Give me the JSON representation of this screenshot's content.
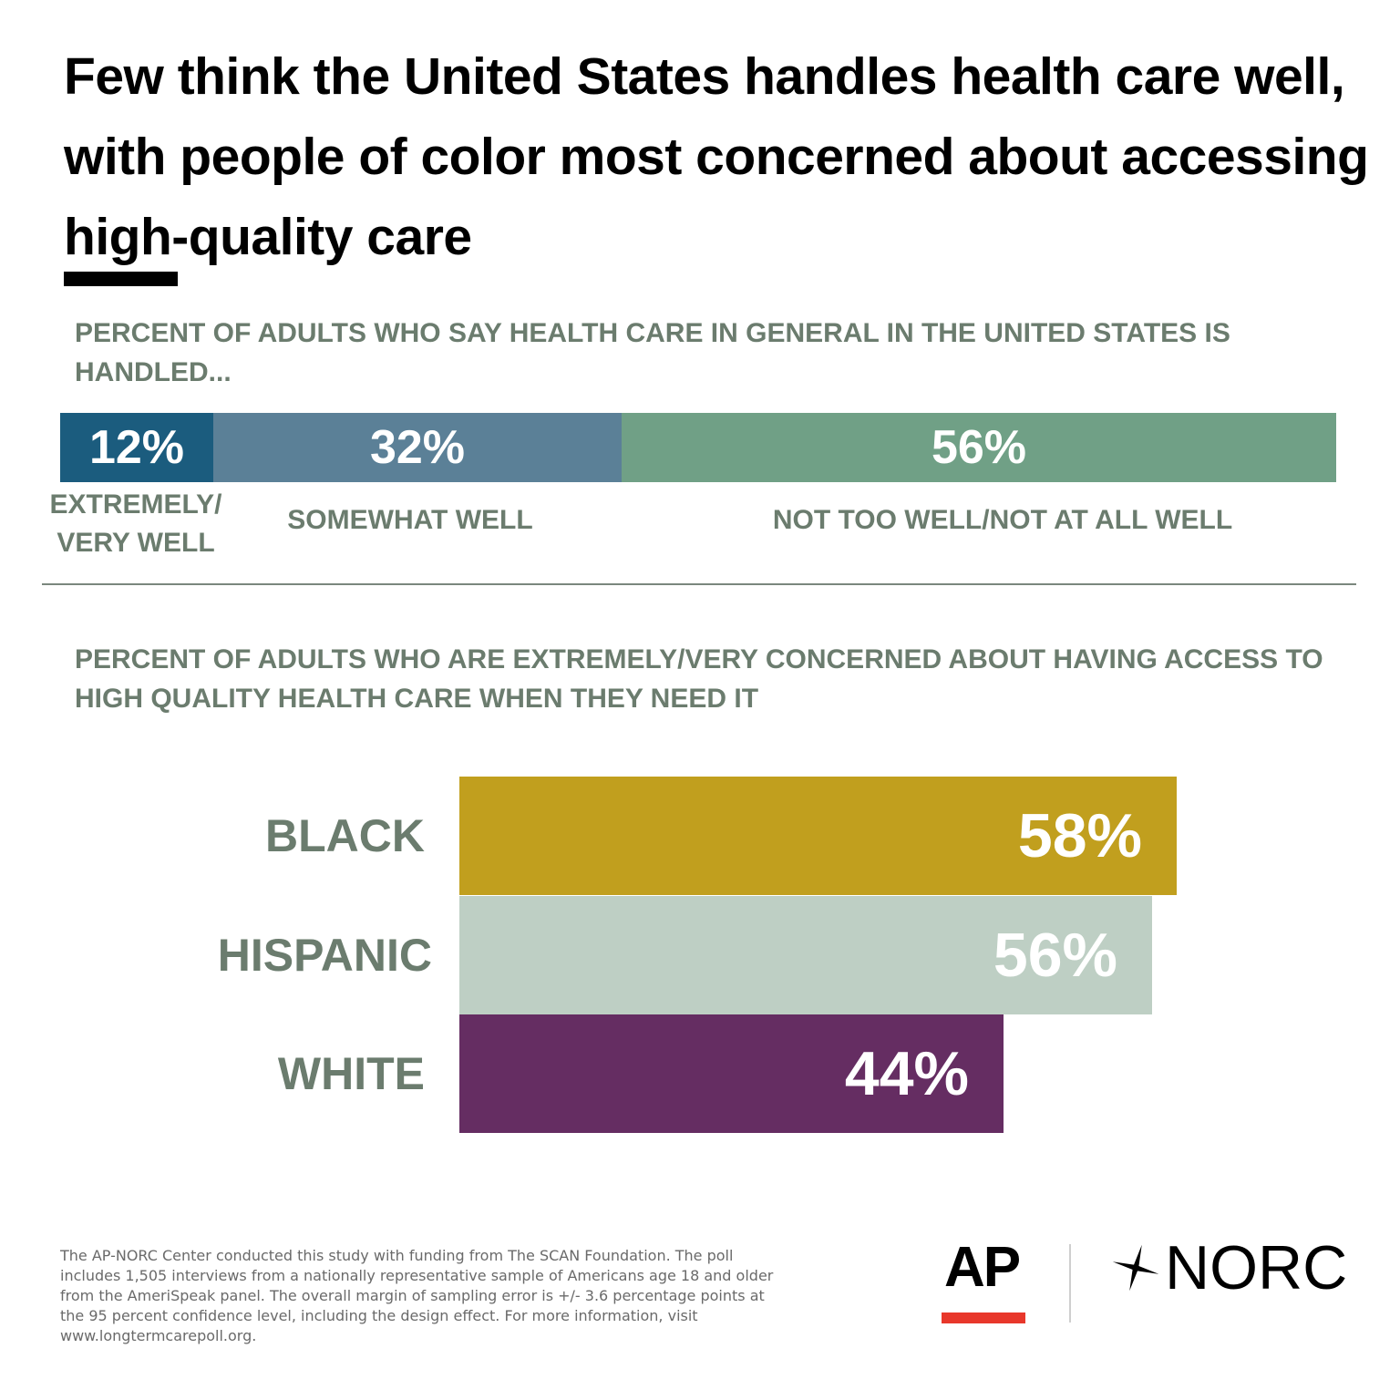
{
  "title": "Few think the United States handles health care well, with people of color most concerned about accessing high-quality care",
  "chart_data": [
    {
      "type": "bar",
      "orientation": "stacked-horizontal",
      "subtitle": "PERCENT OF ADULTS WHO SAY HEALTH CARE IN GENERAL IN THE UNITED STATES IS HANDLED...",
      "categories": [
        "EXTREMELY/ VERY WELL",
        "SOMEWHAT WELL",
        "NOT TOO WELL/NOT AT ALL WELL"
      ],
      "values": [
        12,
        32,
        56
      ],
      "value_labels": [
        "12%",
        "32%",
        "56%"
      ],
      "colors": [
        "#1b5c7e",
        "#5b8097",
        "#70a086"
      ],
      "xlim": [
        0,
        100
      ]
    },
    {
      "type": "bar",
      "orientation": "horizontal",
      "subtitle": "PERCENT OF ADULTS WHO ARE EXTREMELY/VERY CONCERNED ABOUT HAVING ACCESS TO HIGH QUALITY HEALTH CARE WHEN THEY NEED IT",
      "categories": [
        "BLACK",
        "HISPANIC",
        "WHITE"
      ],
      "values": [
        58,
        56,
        44
      ],
      "value_labels": [
        "58%",
        "56%",
        "44%"
      ],
      "colors": [
        "#c19f1e",
        "#becfc4",
        "#652d62"
      ],
      "xlim": [
        0,
        100
      ]
    }
  ],
  "footnote": "The AP-NORC Center conducted this study with funding from The SCAN Foundation. The poll includes 1,505 interviews from a nationally representative sample of Americans age 18 and older from the AmeriSpeak panel. The overall margin of sampling error is +/- 3.6 percentage points at the 95 percent confidence level, including the design effect. For more information, visit www.longtermcarepoll.org.",
  "logos": {
    "ap": "AP",
    "norc": "NORC",
    "ap_accent_color": "#e8372b"
  }
}
